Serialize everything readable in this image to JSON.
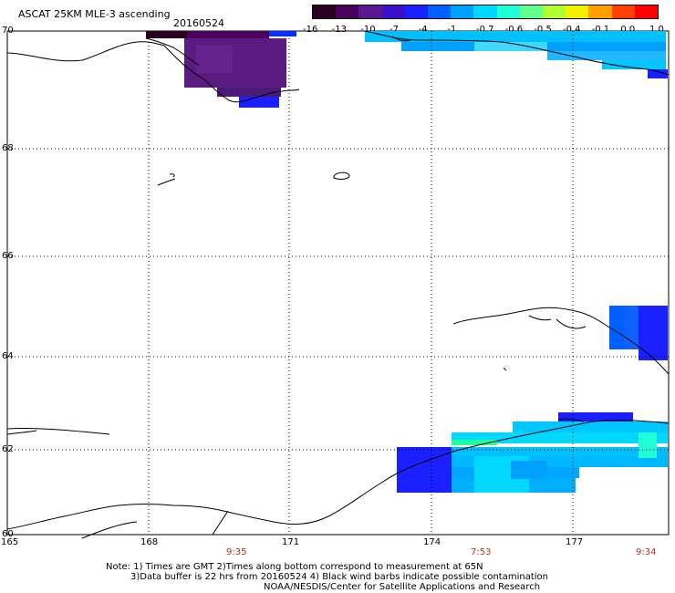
{
  "header": {
    "title": "ASCAT 25KM MLE-3 ascending",
    "date": "20160524"
  },
  "colorbar": {
    "labels": [
      "-16",
      "-13",
      "-10",
      "-7",
      "-4",
      "-1",
      "-0.7",
      "-0.6",
      "-0.5",
      "-0.4",
      "-0.1",
      "0.0",
      "1.0"
    ],
    "colors": [
      "#2a0020",
      "#4a005a",
      "#5a1890",
      "#3a10c8",
      "#1a20ff",
      "#0060ff",
      "#00a0ff",
      "#00d8ff",
      "#20ffd8",
      "#60ff90",
      "#b0ff30",
      "#f0f000",
      "#ffa000",
      "#ff4000",
      "#ff0000"
    ]
  },
  "axes": {
    "lat_labels": [
      "70",
      "68",
      "66",
      "64",
      "62",
      "60"
    ],
    "lon_labels": [
      "165",
      "168",
      "171",
      "174",
      "177"
    ],
    "time_labels": [
      "9:35",
      "7:53",
      "9:34"
    ]
  },
  "notes": {
    "line1": "Note: 1) Times are GMT 2)Times along bottom correspond to measurement at 65N",
    "line2": "3)Data buffer is 22 hrs from 20160524 4) Black wind barbs indicate possible contamination",
    "line3": "NOAA/NESDIS/Center for Satellite Applications and Research"
  }
}
